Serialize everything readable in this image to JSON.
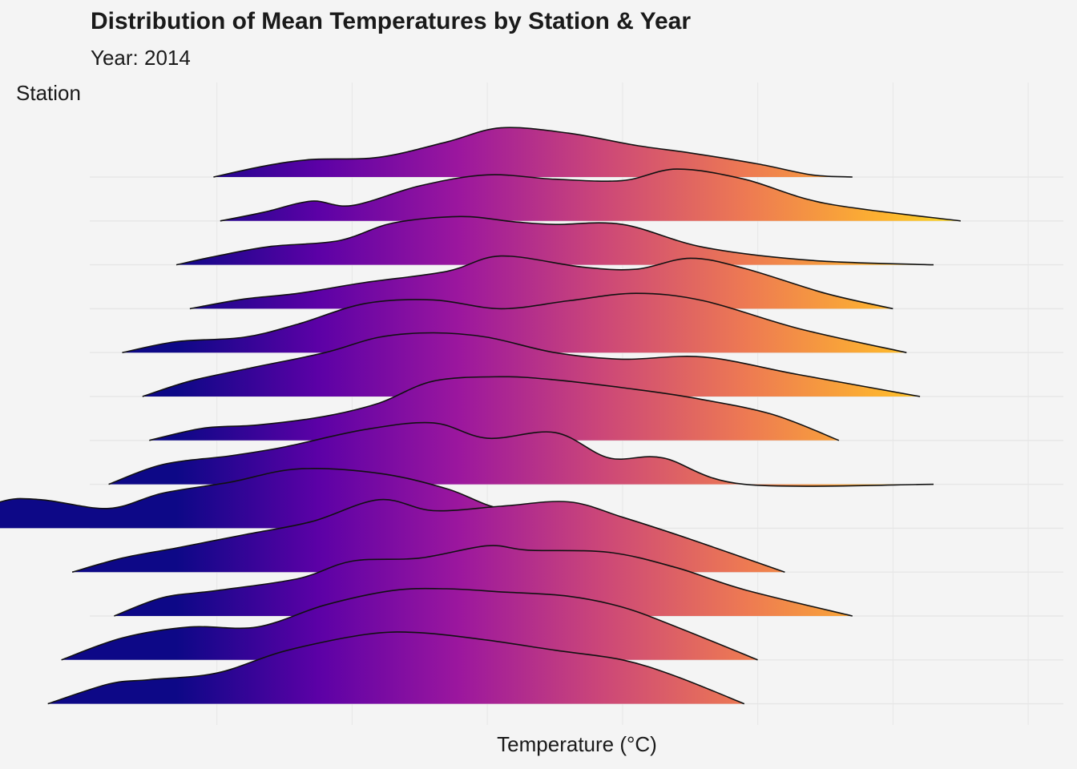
{
  "chart_data": {
    "type": "ridgeline",
    "title": "Distribution of Mean Temperatures by Station & Year",
    "subtitle": "Year: 2014",
    "xlabel": "Temperature (°C)",
    "ylabel": "Station",
    "grid": true,
    "fill_palette": "plasma",
    "gradient_colors": [
      "#0d0887",
      "#5c01a6",
      "#9c179e",
      "#cc4778",
      "#ed7953",
      "#fdb42f",
      "#f0f921"
    ],
    "gradient_domain": [
      -0.3,
      1.2
    ],
    "x_tick_values": [
      0,
      1,
      2,
      3,
      4,
      5,
      6
    ],
    "xlim": [
      -0.94,
      6.26
    ],
    "ridges": [
      {
        "x": [
          -0.025,
          0.35,
          0.7,
          1.2,
          1.7,
          2.1,
          2.6,
          3.1,
          3.5,
          4.0,
          4.4,
          4.7
        ],
        "y": [
          0.0,
          0.25,
          0.4,
          0.45,
          0.8,
          1.12,
          1.0,
          0.72,
          0.55,
          0.3,
          0.05,
          0.0
        ]
      },
      {
        "x": [
          0.025,
          0.35,
          0.7,
          1.0,
          1.5,
          2.0,
          2.5,
          3.0,
          3.4,
          3.9,
          4.5,
          5.5
        ],
        "y": [
          0.0,
          0.2,
          0.45,
          0.35,
          0.8,
          1.05,
          0.95,
          0.92,
          1.18,
          0.95,
          0.4,
          0.0
        ]
      },
      {
        "x": [
          -0.3,
          0.0,
          0.4,
          0.9,
          1.3,
          1.8,
          2.2,
          2.5,
          3.0,
          3.6,
          4.4,
          5.3
        ],
        "y": [
          0.0,
          0.2,
          0.42,
          0.55,
          0.95,
          1.1,
          0.98,
          0.92,
          0.92,
          0.4,
          0.1,
          0.0
        ]
      },
      {
        "x": [
          -0.2,
          0.2,
          0.6,
          1.1,
          1.7,
          2.1,
          2.7,
          3.1,
          3.5,
          3.9,
          4.5,
          5.0
        ],
        "y": [
          0.0,
          0.22,
          0.35,
          0.6,
          0.85,
          1.2,
          0.95,
          0.9,
          1.15,
          0.92,
          0.35,
          0.0
        ]
      },
      {
        "x": [
          -0.7,
          -0.3,
          0.2,
          0.6,
          1.1,
          1.6,
          2.1,
          2.6,
          3.1,
          3.6,
          4.3,
          5.1
        ],
        "y": [
          0.0,
          0.25,
          0.35,
          0.65,
          1.12,
          1.2,
          1.0,
          1.18,
          1.35,
          1.18,
          0.55,
          0.0
        ]
      },
      {
        "x": [
          -0.55,
          -0.2,
          0.25,
          0.8,
          1.2,
          1.6,
          2.0,
          2.5,
          3.0,
          3.6,
          4.3,
          5.2
        ],
        "y": [
          0.0,
          0.35,
          0.65,
          1.0,
          1.35,
          1.45,
          1.35,
          1.0,
          0.85,
          0.9,
          0.5,
          0.0
        ]
      },
      {
        "x": [
          -0.5,
          -0.1,
          0.3,
          0.8,
          1.2,
          1.6,
          2.1,
          2.5,
          3.0,
          3.5,
          4.1,
          4.6
        ],
        "y": [
          0.0,
          0.28,
          0.35,
          0.55,
          0.85,
          1.35,
          1.45,
          1.38,
          1.2,
          0.98,
          0.6,
          0.0
        ]
      },
      {
        "x": [
          -0.8,
          -0.4,
          0.1,
          0.5,
          1.1,
          1.6,
          2.0,
          2.5,
          2.9,
          3.3,
          3.9,
          5.3
        ],
        "y": [
          0.0,
          0.45,
          0.65,
          0.85,
          1.25,
          1.4,
          1.05,
          1.18,
          0.6,
          0.6,
          0.0,
          0.0
        ]
      },
      {
        "x": [
          -2.0,
          -1.6,
          -1.3,
          -0.8,
          -0.4,
          0.1,
          0.6,
          1.2,
          1.7,
          2.1,
          2.5,
          3.0
        ],
        "y": [
          0.0,
          0.6,
          0.65,
          0.45,
          0.8,
          1.05,
          1.35,
          1.25,
          0.9,
          0.45,
          0.55,
          0.0
        ]
      },
      {
        "x": [
          -1.07,
          -0.7,
          -0.3,
          0.2,
          0.7,
          1.2,
          1.6,
          2.1,
          2.6,
          3.0,
          3.5,
          4.2
        ],
        "y": [
          0.0,
          0.32,
          0.55,
          0.85,
          1.15,
          1.65,
          1.4,
          1.5,
          1.6,
          1.25,
          0.75,
          0.0
        ]
      },
      {
        "x": [
          -0.76,
          -0.4,
          0.0,
          0.6,
          1.0,
          1.5,
          2.0,
          2.3,
          2.9,
          3.4,
          3.9,
          4.7
        ],
        "y": [
          0.0,
          0.42,
          0.58,
          0.85,
          1.25,
          1.32,
          1.6,
          1.5,
          1.45,
          1.1,
          0.6,
          0.0
        ]
      },
      {
        "x": [
          -1.15,
          -0.7,
          -0.2,
          0.3,
          0.8,
          1.3,
          1.7,
          2.1,
          2.6,
          3.0,
          3.4,
          4.0
        ],
        "y": [
          0.0,
          0.5,
          0.75,
          0.75,
          1.25,
          1.58,
          1.62,
          1.55,
          1.45,
          1.2,
          0.75,
          0.0
        ]
      },
      {
        "x": [
          -1.25,
          -0.8,
          -0.5,
          0.0,
          0.5,
          1.1,
          1.5,
          2.0,
          2.5,
          3.0,
          3.4,
          3.9
        ],
        "y": [
          0.0,
          0.45,
          0.55,
          0.7,
          1.2,
          1.58,
          1.62,
          1.45,
          1.22,
          1.0,
          0.62,
          0.0
        ]
      }
    ]
  }
}
